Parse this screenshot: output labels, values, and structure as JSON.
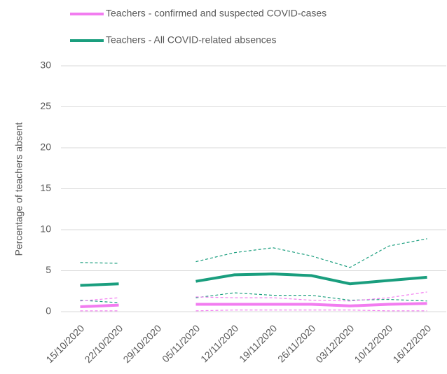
{
  "chart_data": {
    "type": "line",
    "categories": [
      "15/10/2020",
      "22/10/2020",
      "29/10/2020",
      "05/11/2020",
      "12/11/2020",
      "19/11/2020",
      "26/11/2020",
      "03/12/2020",
      "10/12/2020",
      "16/12/2020"
    ],
    "ylabel": "Percentage of teachers absent",
    "ylim": [
      0,
      30
    ],
    "yticks": [
      0,
      5,
      10,
      15,
      20,
      25,
      30
    ],
    "grid": true,
    "series": [
      {
        "color": "#1a9e7e",
        "dash": true,
        "values": [
          6.0,
          5.9,
          null,
          6.1,
          7.2,
          7.8,
          6.8,
          5.4,
          8.0,
          8.9
        ]
      },
      {
        "color": "#1a9e7e",
        "dash": true,
        "values": [
          1.4,
          1.1,
          null,
          1.7,
          2.3,
          2.0,
          2.0,
          1.4,
          1.5,
          1.3
        ]
      },
      {
        "color": "#f27cf0",
        "dash": true,
        "values": [
          1.3,
          1.7,
          null,
          1.8,
          1.7,
          1.7,
          1.4,
          1.3,
          1.7,
          2.4
        ]
      },
      {
        "color": "#f27cf0",
        "dash": true,
        "values": [
          0.1,
          0.1,
          null,
          0.1,
          0.2,
          0.2,
          0.2,
          0.2,
          0.1,
          0.1
        ]
      },
      {
        "name": "Teachers - confirmed and suspected COVID-cases",
        "color": "#f27cf0",
        "values": [
          0.6,
          0.8,
          null,
          0.9,
          0.9,
          0.9,
          0.9,
          0.7,
          0.9,
          1.0
        ]
      },
      {
        "name": "Teachers - All COVID-related absences",
        "color": "#1a9e7e",
        "values": [
          3.2,
          3.4,
          null,
          3.7,
          4.5,
          4.6,
          4.4,
          3.4,
          3.8,
          4.2
        ]
      }
    ]
  }
}
